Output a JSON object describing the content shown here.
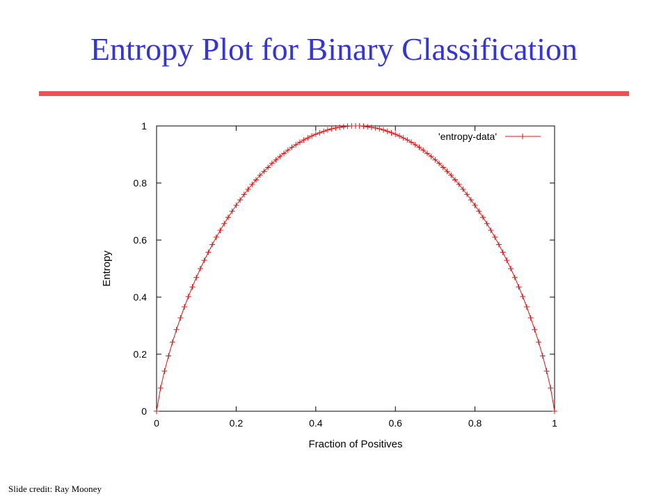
{
  "slide": {
    "title": "Entropy Plot for Binary Classification",
    "credit": "Slide credit: Ray Mooney",
    "title_color": "#3333e6",
    "rule_color": "#f05050"
  },
  "chart_data": {
    "type": "line",
    "title": "",
    "xlabel": "Fraction of Positives",
    "ylabel": "Entropy",
    "xlim": [
      0,
      1
    ],
    "ylim": [
      0,
      1
    ],
    "xticks": [
      "0",
      "0.2",
      "0.4",
      "0.6",
      "0.8",
      "1"
    ],
    "yticks": [
      "0",
      "0.2",
      "0.4",
      "0.6",
      "0.8",
      "1"
    ],
    "grid": false,
    "legend_position": "top-right",
    "series": [
      {
        "name": "'entropy-data'",
        "color": "#e01010",
        "marker": "plus",
        "x": [
          0,
          0.01,
          0.02,
          0.03,
          0.04,
          0.05,
          0.06,
          0.07,
          0.08,
          0.09,
          0.1,
          0.11,
          0.12,
          0.13,
          0.14,
          0.15,
          0.16,
          0.17,
          0.18,
          0.19,
          0.2,
          0.21,
          0.22,
          0.23,
          0.24,
          0.25,
          0.26,
          0.27,
          0.28,
          0.29,
          0.3,
          0.31,
          0.32,
          0.33,
          0.34,
          0.35,
          0.36,
          0.37,
          0.38,
          0.39,
          0.4,
          0.41,
          0.42,
          0.43,
          0.44,
          0.45,
          0.46,
          0.47,
          0.48,
          0.49,
          0.5,
          0.51,
          0.52,
          0.53,
          0.54,
          0.55,
          0.56,
          0.57,
          0.58,
          0.59,
          0.6,
          0.61,
          0.62,
          0.63,
          0.64,
          0.65,
          0.66,
          0.67,
          0.68,
          0.69,
          0.7,
          0.71,
          0.72,
          0.73,
          0.74,
          0.75,
          0.76,
          0.77,
          0.78,
          0.79,
          0.8,
          0.81,
          0.82,
          0.83,
          0.84,
          0.85,
          0.86,
          0.87,
          0.88,
          0.89,
          0.9,
          0.91,
          0.92,
          0.93,
          0.94,
          0.95,
          0.96,
          0.97,
          0.98,
          0.99,
          1
        ],
        "y": [
          0,
          0.081,
          0.141,
          0.194,
          0.242,
          0.286,
          0.327,
          0.366,
          0.402,
          0.436,
          0.469,
          0.5,
          0.529,
          0.557,
          0.584,
          0.61,
          0.634,
          0.658,
          0.68,
          0.701,
          0.722,
          0.741,
          0.76,
          0.778,
          0.795,
          0.811,
          0.827,
          0.841,
          0.855,
          0.869,
          0.881,
          0.893,
          0.904,
          0.915,
          0.925,
          0.934,
          0.943,
          0.951,
          0.958,
          0.965,
          0.971,
          0.976,
          0.981,
          0.986,
          0.99,
          0.993,
          0.995,
          0.997,
          0.999,
          1,
          1,
          1,
          0.999,
          0.997,
          0.995,
          0.993,
          0.99,
          0.986,
          0.981,
          0.976,
          0.971,
          0.965,
          0.958,
          0.951,
          0.943,
          0.934,
          0.925,
          0.915,
          0.904,
          0.893,
          0.881,
          0.869,
          0.855,
          0.841,
          0.827,
          0.811,
          0.795,
          0.778,
          0.76,
          0.741,
          0.722,
          0.701,
          0.68,
          0.658,
          0.634,
          0.61,
          0.584,
          0.557,
          0.529,
          0.5,
          0.469,
          0.436,
          0.402,
          0.366,
          0.327,
          0.286,
          0.242,
          0.194,
          0.141,
          0.081,
          0
        ]
      }
    ]
  }
}
